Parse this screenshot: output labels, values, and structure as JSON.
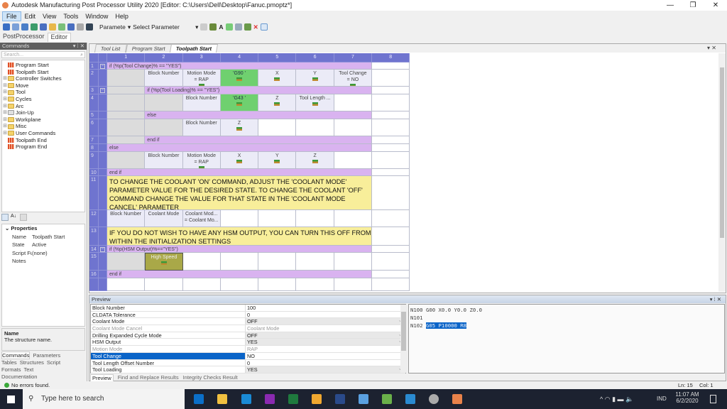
{
  "window": {
    "title": "Autodesk Manufacturing Post Processor Utility 2020 [Editor: C:\\Users\\Dell\\Desktop\\Fanuc.pmoptz*]",
    "controls": [
      "—",
      "❐",
      "✕"
    ]
  },
  "menu": [
    "File",
    "Edit",
    "View",
    "Tools",
    "Window",
    "Help"
  ],
  "toolbar": {
    "param_label": "Paramete",
    "param_select": "Select Parameter"
  },
  "doc_tabs": [
    "PostProcessor",
    "Editor"
  ],
  "commands_panel": {
    "title": "Commands",
    "search_placeholder": "Search...",
    "tree": [
      {
        "label": "Program Start",
        "icon": "command-icon",
        "expandable": false
      },
      {
        "label": "Toolpath Start",
        "icon": "command-icon",
        "expandable": false
      },
      {
        "label": "Controller Switches",
        "icon": "folder-icon",
        "expandable": true
      },
      {
        "label": "Move",
        "icon": "folder-icon",
        "expandable": true
      },
      {
        "label": "Tool",
        "icon": "folder-icon",
        "expandable": true
      },
      {
        "label": "Cycles",
        "icon": "folder-icon",
        "expandable": true
      },
      {
        "label": "Arc",
        "icon": "folder-icon",
        "expandable": true
      },
      {
        "label": "Join-Up",
        "icon": "folder-grey-icon",
        "expandable": true
      },
      {
        "label": "Workplane",
        "icon": "folder-icon",
        "expandable": true
      },
      {
        "label": "Misc",
        "icon": "folder-icon",
        "expandable": true
      },
      {
        "label": "User Commands",
        "icon": "folder-icon",
        "expandable": true
      },
      {
        "label": "Toolpath End",
        "icon": "command-icon",
        "expandable": false
      },
      {
        "label": "Program End",
        "icon": "command-icon",
        "expandable": false
      }
    ]
  },
  "properties": {
    "header": "Properties",
    "rows": [
      {
        "k": "Name",
        "v": "Toolpath Start"
      },
      {
        "k": "State",
        "v": "Active"
      },
      {
        "k": "Script Funct",
        "v": "(none)"
      },
      {
        "k": "Notes",
        "v": ""
      }
    ],
    "help_title": "Name",
    "help_text": "The structure name."
  },
  "left_tabs": [
    "Commands",
    "Parameters",
    "Tables",
    "Structures",
    "Script",
    "Formats",
    "Text",
    "Documentation"
  ],
  "editor_tabs": [
    "Tool List",
    "Program Start",
    "Toolpath Start"
  ],
  "grid": {
    "columns": [
      "1",
      "2",
      "3",
      "4",
      "5",
      "6",
      "7",
      "8"
    ],
    "rows": [
      {
        "n": "1",
        "collapse": true,
        "span_from": 1,
        "text": "if (%p(Tool Change)% == \"YES\")"
      },
      {
        "n": "2",
        "cells": [
          {
            "s": "grey",
            "t": ""
          },
          {
            "s": "cell",
            "t": "Block Number"
          },
          {
            "s": "cell",
            "t": "Motion Mode\n= RAP",
            "icon": true
          },
          {
            "s": "green",
            "t": "'G90 '",
            "icon": true
          },
          {
            "s": "cell",
            "t": "X",
            "icon": true
          },
          {
            "s": "cell",
            "t": "Y",
            "icon": true
          },
          {
            "s": "cell",
            "t": "Tool Change\n= NO",
            "icon": true
          }
        ]
      },
      {
        "n": "3",
        "collapse": true,
        "span_from": 2,
        "text": "if (%p(Tool Loading)% == \"YES\")",
        "pre": [
          {
            "s": "grey",
            "t": ""
          }
        ]
      },
      {
        "n": "4",
        "cells": [
          {
            "s": "grey",
            "t": ""
          },
          {
            "s": "grey",
            "t": ""
          },
          {
            "s": "cell",
            "t": "Block Number"
          },
          {
            "s": "green",
            "t": "'G43 '",
            "icon": true
          },
          {
            "s": "cell",
            "t": "Z",
            "icon": true
          },
          {
            "s": "cell",
            "t": "Tool Length ...",
            "icon": true
          },
          {
            "s": "white",
            "t": ""
          }
        ]
      },
      {
        "n": "5",
        "span_from": 2,
        "text": "else",
        "pre": [
          {
            "s": "grey",
            "t": ""
          }
        ]
      },
      {
        "n": "6",
        "cells": [
          {
            "s": "grey",
            "t": ""
          },
          {
            "s": "grey",
            "t": ""
          },
          {
            "s": "cell",
            "t": "Block Number"
          },
          {
            "s": "cell",
            "t": "Z",
            "icon": true
          },
          {
            "s": "white",
            "t": ""
          },
          {
            "s": "white",
            "t": ""
          },
          {
            "s": "white",
            "t": ""
          }
        ]
      },
      {
        "n": "7",
        "span_from": 2,
        "text": "end if",
        "pre": [
          {
            "s": "grey",
            "t": ""
          }
        ]
      },
      {
        "n": "8",
        "span_from": 1,
        "text": "else"
      },
      {
        "n": "9",
        "cells": [
          {
            "s": "grey",
            "t": ""
          },
          {
            "s": "cell",
            "t": "Block Number"
          },
          {
            "s": "cell",
            "t": "Motion Mode\n= RAP",
            "icon": true
          },
          {
            "s": "cell",
            "t": "X",
            "icon": true
          },
          {
            "s": "cell",
            "t": "Y",
            "icon": true
          },
          {
            "s": "cell",
            "t": "Z",
            "icon": true
          },
          {
            "s": "white",
            "t": ""
          }
        ]
      },
      {
        "n": "10",
        "span_from": 1,
        "text": "end if"
      },
      {
        "n": "11",
        "comment": "TO CHANGE THE COOLANT 'ON' COMMAND, ADJUST THE 'COOLANT MODE' PARAMETER VALUE FOR THE DESIRED STATE. TO CHANGE THE COOLANT 'OFF' COMMAND CHANGE THE VALUE FOR THAT STATE IN THE 'COOLANT MODE CANCEL' PARAMETER"
      },
      {
        "n": "12",
        "cells": [
          {
            "s": "cell",
            "t": "Block Number"
          },
          {
            "s": "cell",
            "t": "Coolant Mode"
          },
          {
            "s": "cell",
            "t": "Coolant Mod...\n= Coolant Mo..."
          },
          {
            "s": "white",
            "t": ""
          },
          {
            "s": "white",
            "t": ""
          },
          {
            "s": "white",
            "t": ""
          },
          {
            "s": "white",
            "t": ""
          }
        ]
      },
      {
        "n": "13",
        "comment": "IF YOU DO NOT WISH TO HAVE ANY HSM OUTPUT, YOU CAN TURN THIS OFF FROM WITHIN THE INITIALIZATION SETTINGS"
      },
      {
        "n": "14",
        "collapse": true,
        "span_from": 1,
        "text": "if (%p(HSM Output)%==\"YES\")"
      },
      {
        "n": "15",
        "cells": [
          {
            "s": "grey",
            "t": ""
          },
          {
            "s": "olive",
            "t": "High Speed"
          },
          {
            "s": "white",
            "t": ""
          },
          {
            "s": "white",
            "t": ""
          },
          {
            "s": "white",
            "t": ""
          },
          {
            "s": "white",
            "t": ""
          },
          {
            "s": "white",
            "t": ""
          }
        ]
      },
      {
        "n": "16",
        "span_from": 1,
        "text": "end if"
      },
      {
        "n": "",
        "cells": [
          {
            "s": "white",
            "t": ""
          },
          {
            "s": "white",
            "t": ""
          },
          {
            "s": "white",
            "t": ""
          },
          {
            "s": "white",
            "t": ""
          },
          {
            "s": "white",
            "t": ""
          },
          {
            "s": "white",
            "t": ""
          },
          {
            "s": "white",
            "t": ""
          }
        ]
      }
    ]
  },
  "preview": {
    "title": "Preview",
    "params": [
      {
        "k": "Block Number",
        "v": "100"
      },
      {
        "k": "CLDATA Tolerance",
        "v": "0"
      },
      {
        "k": "Coolant Mode",
        "v": "OFF",
        "dd": true
      },
      {
        "k": "Coolant Mode Cancel",
        "v": "Coolant Mode",
        "dis": true
      },
      {
        "k": "Drilling Expanded Cycle Mode",
        "v": "OFF",
        "dd": true
      },
      {
        "k": "HSM Output",
        "v": "YES",
        "dd": true
      },
      {
        "k": "Motion Mode",
        "v": "RAP",
        "dis": true
      },
      {
        "k": "Tool Change",
        "v": "NO",
        "sel": true
      },
      {
        "k": "Tool Length Offset Number",
        "v": "0"
      },
      {
        "k": "Tool Loading",
        "v": "YES",
        "dd": true
      }
    ],
    "tabs": [
      "Preview",
      "Find and Replace Results",
      "Integrity Checks Result"
    ],
    "output": [
      {
        "pre": "N100 G00 X0.0 Y0.0 Z0.0",
        "hl": ""
      },
      {
        "pre": "N101",
        "hl": ""
      },
      {
        "pre": "N102 ",
        "hl": "G05 P10000 R8"
      }
    ]
  },
  "status": {
    "message": "No errors found.",
    "line": "Ln: 15",
    "col": "Col: 1"
  },
  "taskbar": {
    "search_placeholder": "Type here to search",
    "time": "11:07 AM",
    "date": "6/2/2020",
    "lang": "IND"
  },
  "colors": {
    "column_header": "#6f74cf",
    "block_span": "#d9b3f0",
    "comment": "#f8ee9a",
    "selected_cell": "#6fd06f",
    "accent": "#0a64c8"
  }
}
